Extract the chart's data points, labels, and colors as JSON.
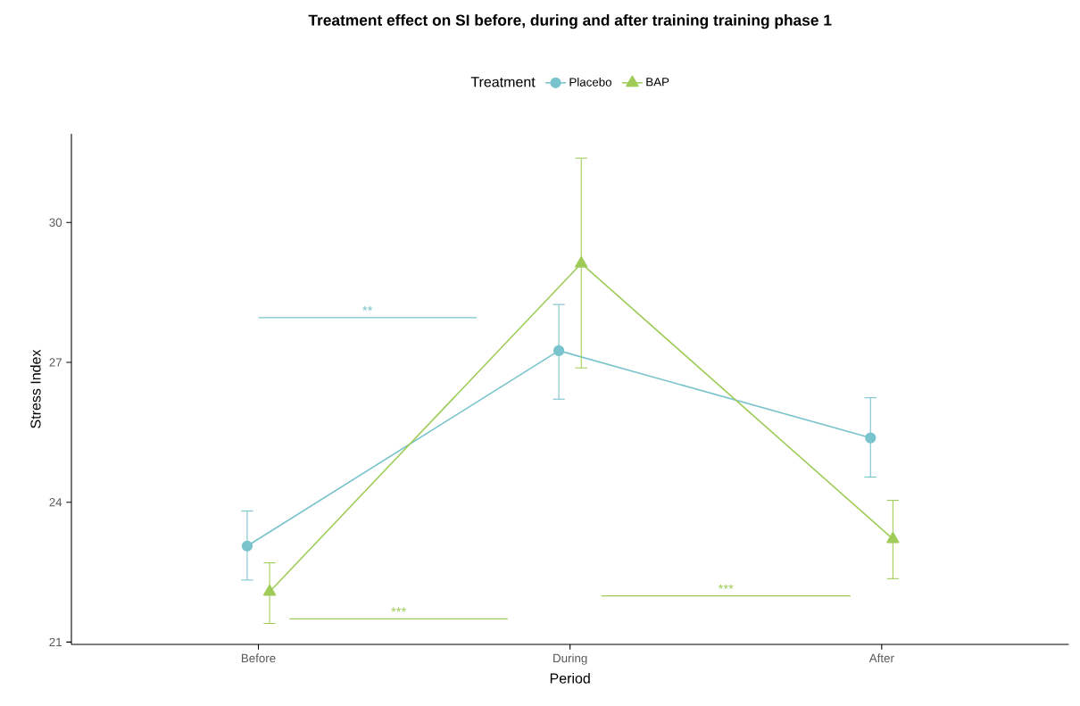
{
  "chart_data": {
    "type": "line",
    "title": "Treatment effect on SI before, during and after training training phase 1",
    "xlabel": "Period",
    "ylabel": "Stress Index",
    "legend_title": "Treatment",
    "legend": "top",
    "categories": [
      "Before",
      "During",
      "After"
    ],
    "series": [
      {
        "name": "Placebo",
        "color": "#79c3cc",
        "marker": "circle",
        "values": [
          23.06,
          27.25,
          25.38
        ],
        "errors": [
          [
            22.33,
            23.81
          ],
          [
            26.21,
            28.24
          ],
          [
            24.54,
            26.24
          ]
        ]
      },
      {
        "name": "BAP",
        "color": "#9fcc58",
        "marker": "triangle",
        "values": [
          22.08,
          29.12,
          23.21
        ],
        "errors": [
          [
            21.4,
            22.7
          ],
          [
            26.88,
            31.38
          ],
          [
            22.36,
            24.04
          ]
        ]
      }
    ],
    "ylim": [
      20.95,
      31.9
    ],
    "yticks": [
      21,
      24,
      27,
      30
    ],
    "annotations": [
      "**",
      "***",
      "***"
    ]
  }
}
